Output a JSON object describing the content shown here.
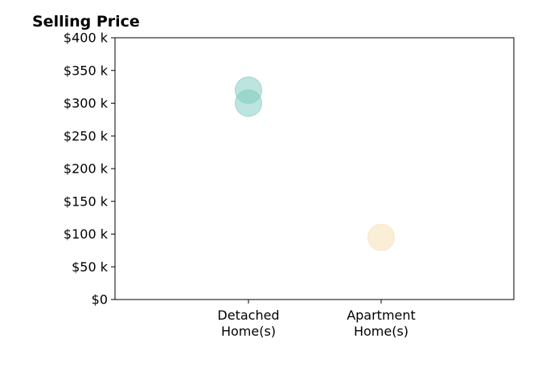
{
  "chart_data": {
    "type": "scatter",
    "title": "Selling Price",
    "xlabel": "",
    "ylabel": "",
    "categories": [
      [
        "Detached",
        "Home(s)"
      ],
      [
        "Apartment",
        "Home(s)"
      ]
    ],
    "ylim": [
      0,
      400000
    ],
    "yticks": [
      {
        "value": 0,
        "label": "$0"
      },
      {
        "value": 50000,
        "label": "$50 k"
      },
      {
        "value": 100000,
        "label": "$100 k"
      },
      {
        "value": 150000,
        "label": "$150 k"
      },
      {
        "value": 200000,
        "label": "$200 k"
      },
      {
        "value": 250000,
        "label": "$250 k"
      },
      {
        "value": 300000,
        "label": "$300 k"
      },
      {
        "value": 350000,
        "label": "$350 k"
      },
      {
        "value": 400000,
        "label": "$400 k"
      }
    ],
    "grid": false,
    "points": [
      {
        "category": 0,
        "y": 320000,
        "color": "#7cc9bd"
      },
      {
        "category": 0,
        "y": 300000,
        "color": "#7cc9bd"
      },
      {
        "category": 1,
        "y": 95000,
        "color": "#f5deb0"
      }
    ],
    "colors": {
      "detached": "#7cc9bd",
      "apartment": "#f5deb0"
    }
  }
}
